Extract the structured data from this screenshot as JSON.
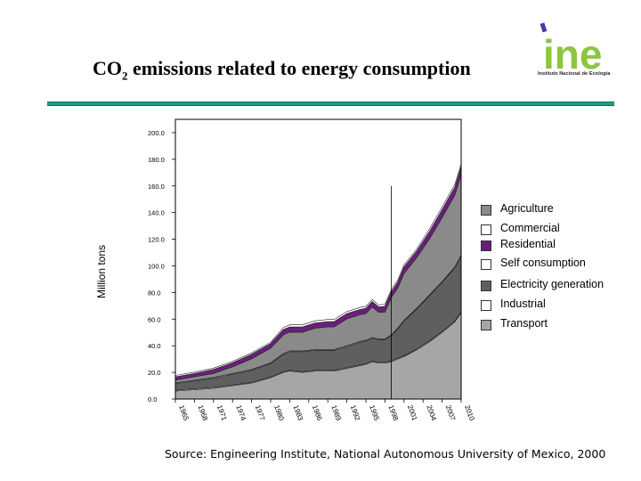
{
  "title": {
    "main": "CO",
    "sub": "2",
    "rest": " emissions related to energy consumption"
  },
  "logo": {
    "text": "ine",
    "caption": "Instituto Nacional de Ecología"
  },
  "source": "Source: Engineering Institute, National Autonomous University of Mexico, 2000",
  "colors": {
    "rule": "#1f9e86",
    "transport": "#a6a6a6",
    "industrial": "#ffffff",
    "electricity": "#5f5f5f",
    "self_consumption": "#ffffff",
    "residential": "#6a1f7a",
    "commercial": "#ffffff",
    "agriculture": "#8a8a8a",
    "forecast_line": "#000000"
  },
  "chart_data": {
    "type": "area",
    "stacked": true,
    "title": "CO2 emissions related to energy consumption",
    "xlabel": "",
    "ylabel": "Million tons",
    "ylim": [
      0,
      210
    ],
    "yticks": [
      "0.0",
      "20.0",
      "40.0",
      "60.0",
      "80.0",
      "100.0",
      "120.0",
      "140.0",
      "160.0",
      "180.0",
      "200.0"
    ],
    "ytick_values": [
      0,
      20,
      40,
      60,
      80,
      100,
      120,
      140,
      160,
      180,
      200
    ],
    "xlim": [
      1965,
      2010
    ],
    "xticks": [
      "1965",
      "1968",
      "1971",
      "1974",
      "1977",
      "1980",
      "1983",
      "1986",
      "1989",
      "1992",
      "1995",
      "1998",
      "2001",
      "2004",
      "2007",
      "2010"
    ],
    "forecast_start_year": 1999,
    "x": [
      1965,
      1968,
      1971,
      1974,
      1977,
      1980,
      1982,
      1983,
      1985,
      1987,
      1989,
      1990,
      1992,
      1994,
      1995,
      1996,
      1997,
      1998,
      1999,
      2000,
      2001,
      2003,
      2005,
      2007,
      2009,
      2010
    ],
    "legend_order": [
      "Agriculture",
      "Commercial",
      "Residential",
      "Self consumption",
      "Electricity generation",
      "Industrial",
      "Transport"
    ],
    "series": [
      {
        "name": "Transport",
        "values": [
          6,
          7,
          8,
          10,
          12,
          16,
          20,
          21,
          20,
          21,
          21,
          21,
          23,
          25,
          26,
          28,
          27,
          27,
          28,
          30,
          32,
          37,
          43,
          50,
          58,
          65
        ]
      },
      {
        "name": "Industrial",
        "values": [
          0.6,
          0.6,
          0.6,
          0.6,
          0.6,
          0.6,
          0.6,
          0.6,
          0.6,
          0.6,
          0.6,
          0.6,
          0.6,
          0.6,
          0.6,
          0.6,
          0.6,
          0.6,
          0.6,
          0.6,
          0.6,
          0.6,
          0.6,
          0.6,
          0.6,
          0.6
        ]
      },
      {
        "name": "Electricity generation",
        "values": [
          5,
          6,
          7,
          8,
          9,
          10,
          13,
          14,
          15,
          15,
          15,
          15,
          16,
          17,
          17,
          17,
          17,
          17,
          19,
          22,
          26,
          30,
          34,
          37,
          40,
          42
        ]
      },
      {
        "name": "Self consumption",
        "values": [
          0.6,
          0.6,
          0.6,
          0.6,
          0.6,
          0.6,
          0.6,
          0.6,
          0.6,
          0.6,
          0.6,
          0.6,
          0.6,
          0.6,
          0.6,
          0.6,
          0.6,
          0.6,
          0.6,
          0.6,
          0.6,
          0.6,
          0.6,
          0.6,
          0.6,
          0.6
        ]
      },
      {
        "name": "Agriculture",
        "values": [
          2,
          2.5,
          3,
          5,
          8,
          11,
          14,
          14,
          14,
          16,
          17,
          17,
          20,
          20,
          20,
          23,
          20,
          20,
          28,
          30,
          35,
          38,
          42,
          48,
          54,
          60
        ]
      },
      {
        "name": "Residential",
        "values": [
          2.5,
          2.5,
          3,
          3,
          3.5,
          3.5,
          4,
          4,
          4,
          4,
          4,
          4,
          4,
          4,
          4,
          4,
          4,
          4.5,
          4.5,
          4.5,
          5,
          5,
          5.5,
          6,
          6,
          6.5
        ]
      },
      {
        "name": "Commercial",
        "values": [
          1,
          1,
          1,
          1,
          1,
          1,
          1.5,
          1.5,
          1.5,
          1.5,
          1.5,
          1.5,
          1.5,
          1.5,
          1.5,
          1.5,
          1.5,
          1.5,
          1.5,
          1.5,
          1.5,
          1.5,
          2,
          2,
          2,
          2
        ]
      }
    ]
  }
}
